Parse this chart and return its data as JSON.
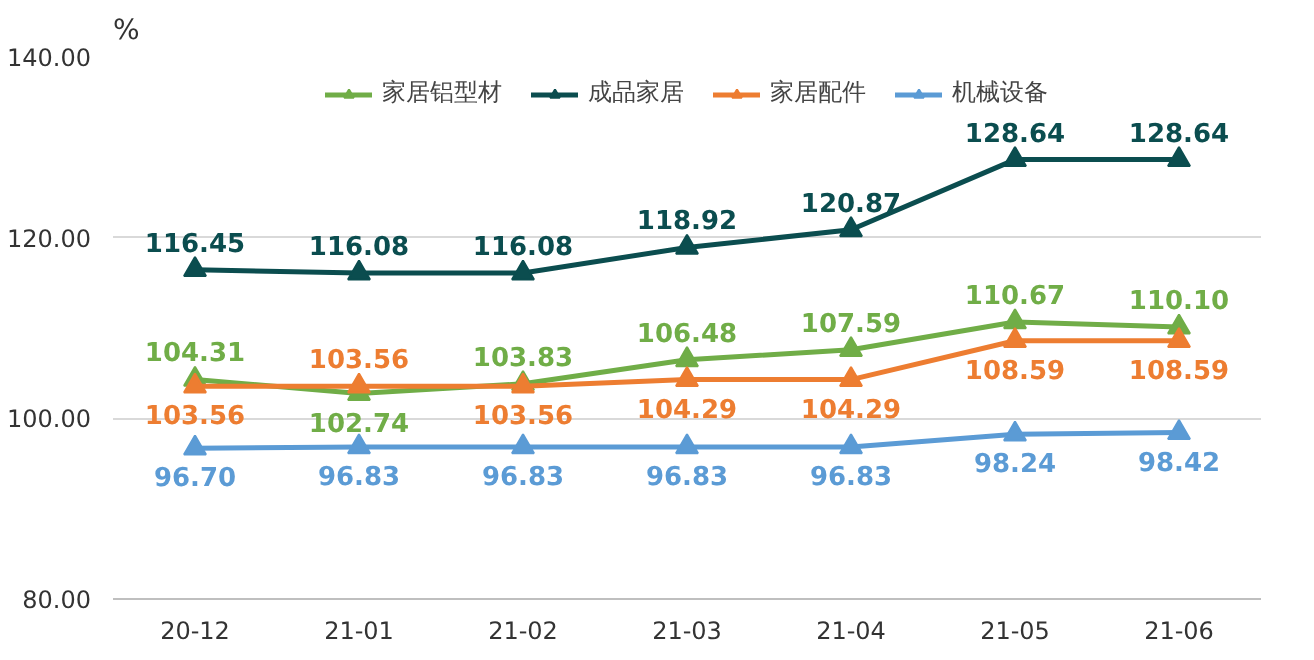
{
  "chart_data": {
    "type": "line",
    "ylabel": "%",
    "categories": [
      "20-12",
      "21-01",
      "21-02",
      "21-03",
      "21-04",
      "21-05",
      "21-06"
    ],
    "series": [
      {
        "name": "家居铝型材",
        "color": "#70ad47",
        "values": [
          104.31,
          102.74,
          103.83,
          106.48,
          107.59,
          110.67,
          110.1
        ],
        "value_labels": [
          "104.31",
          "102.74",
          "103.83",
          "106.48",
          "107.59",
          "110.67",
          "110.10"
        ]
      },
      {
        "name": "成品家居",
        "color": "#0b4d4f",
        "values": [
          116.45,
          116.08,
          116.08,
          118.92,
          120.87,
          128.64,
          128.64
        ],
        "value_labels": [
          "116.45",
          "116.08",
          "116.08",
          "118.92",
          "120.87",
          "128.64",
          "128.64"
        ]
      },
      {
        "name": "家居配件",
        "color": "#ed7d31",
        "values": [
          103.56,
          103.56,
          103.56,
          104.29,
          104.29,
          108.59,
          108.59
        ],
        "value_labels": [
          "103.56",
          "103.56",
          "103.56",
          "104.29",
          "104.29",
          "108.59",
          "108.59"
        ]
      },
      {
        "name": "机械设备",
        "color": "#5b9bd5",
        "values": [
          96.7,
          96.83,
          96.83,
          96.83,
          96.83,
          98.24,
          98.42
        ],
        "value_labels": [
          "96.70",
          "96.83",
          "96.83",
          "96.83",
          "96.83",
          "98.24",
          "98.42"
        ]
      }
    ],
    "ylim": [
      80,
      140
    ],
    "yticks": [
      {
        "value": 80,
        "label": "80.00"
      },
      {
        "value": 100,
        "label": "100.00"
      },
      {
        "value": 120,
        "label": "120.00"
      },
      {
        "value": 140,
        "label": "140.00"
      }
    ],
    "grid": "y",
    "legend": "top",
    "marker": "triangle",
    "line_style": "solid"
  }
}
